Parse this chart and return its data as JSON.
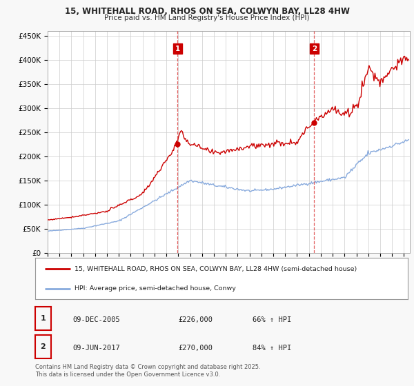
{
  "title_line1": "15, WHITEHALL ROAD, RHOS ON SEA, COLWYN BAY, LL28 4HW",
  "title_line2": "Price paid vs. HM Land Registry's House Price Index (HPI)",
  "ylabel_ticks": [
    "£0",
    "£50K",
    "£100K",
    "£150K",
    "£200K",
    "£250K",
    "£300K",
    "£350K",
    "£400K",
    "£450K"
  ],
  "ylabel_values": [
    0,
    50000,
    100000,
    150000,
    200000,
    250000,
    300000,
    350000,
    400000,
    450000
  ],
  "ylim": [
    0,
    460000
  ],
  "xlim_start": 1995.0,
  "xlim_end": 2025.5,
  "sale1_x": 2005.94,
  "sale1_y": 226000,
  "sale1_label": "1",
  "sale2_x": 2017.44,
  "sale2_y": 270000,
  "sale2_label": "2",
  "red_line_color": "#cc0000",
  "blue_line_color": "#88aadd",
  "vline_color": "#dd4444",
  "annotation_box_color": "#cc0000",
  "legend_line1": "15, WHITEHALL ROAD, RHOS ON SEA, COLWYN BAY, LL28 4HW (semi-detached house)",
  "legend_line2": "HPI: Average price, semi-detached house, Conwy",
  "table_row1_num": "1",
  "table_row1_date": "09-DEC-2005",
  "table_row1_price": "£226,000",
  "table_row1_hpi": "66% ↑ HPI",
  "table_row2_num": "2",
  "table_row2_date": "09-JUN-2017",
  "table_row2_price": "£270,000",
  "table_row2_hpi": "84% ↑ HPI",
  "footer": "Contains HM Land Registry data © Crown copyright and database right 2025.\nThis data is licensed under the Open Government Licence v3.0.",
  "bg_color": "#f8f8f8",
  "plot_bg_color": "#ffffff",
  "grid_color": "#cccccc"
}
